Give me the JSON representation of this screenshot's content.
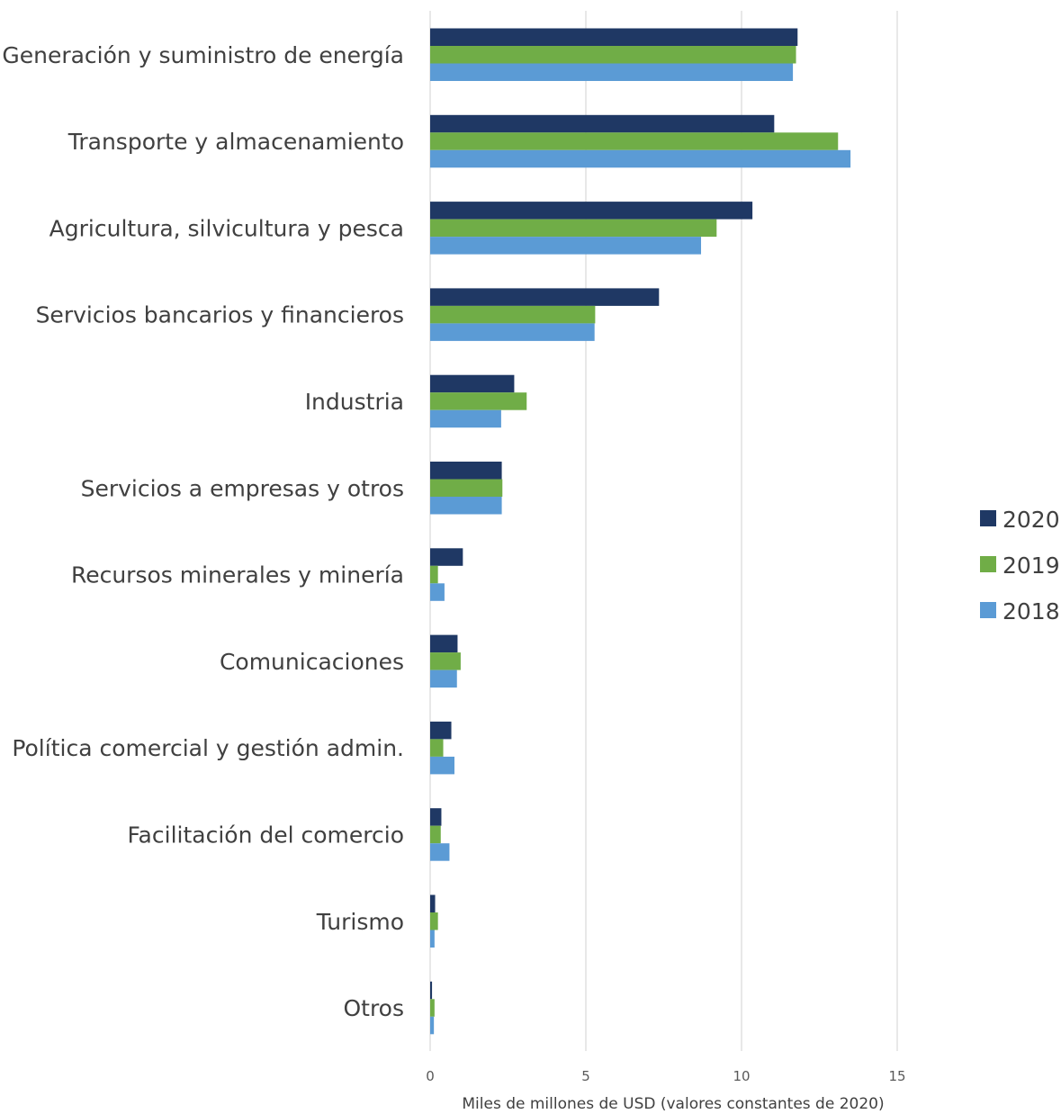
{
  "chart_data": {
    "type": "bar",
    "orientation": "horizontal",
    "categories": [
      "Generación y suministro de energía",
      "Transporte y almacenamiento",
      "Agricultura, silvicultura y pesca",
      "Servicios bancarios y financieros",
      "Industria",
      "Servicios a empresas y otros",
      "Recursos minerales y minería",
      "Comunicaciones",
      "Política comercial y gestión admin.",
      "Facilitación del comercio",
      "Turismo",
      "Otros"
    ],
    "series": [
      {
        "name": "2020",
        "color": "#1f3864",
        "values": [
          11.8,
          11.05,
          10.35,
          7.35,
          2.7,
          2.3,
          1.05,
          0.88,
          0.68,
          0.36,
          0.16,
          0.06
        ]
      },
      {
        "name": "2019",
        "color": "#70ad47",
        "values": [
          11.75,
          13.1,
          9.2,
          5.3,
          3.1,
          2.32,
          0.25,
          0.98,
          0.42,
          0.34,
          0.25,
          0.14
        ]
      },
      {
        "name": "2018",
        "color": "#5b9bd5",
        "values": [
          11.65,
          13.5,
          8.7,
          5.28,
          2.28,
          2.3,
          0.46,
          0.86,
          0.78,
          0.62,
          0.14,
          0.12
        ]
      }
    ],
    "xlabel": "Miles de millones de USD (valores constantes de 2020)",
    "xlim": [
      0,
      15
    ],
    "xticks": [
      0,
      5,
      10,
      15
    ],
    "grid": "vertical",
    "legend": "right"
  }
}
